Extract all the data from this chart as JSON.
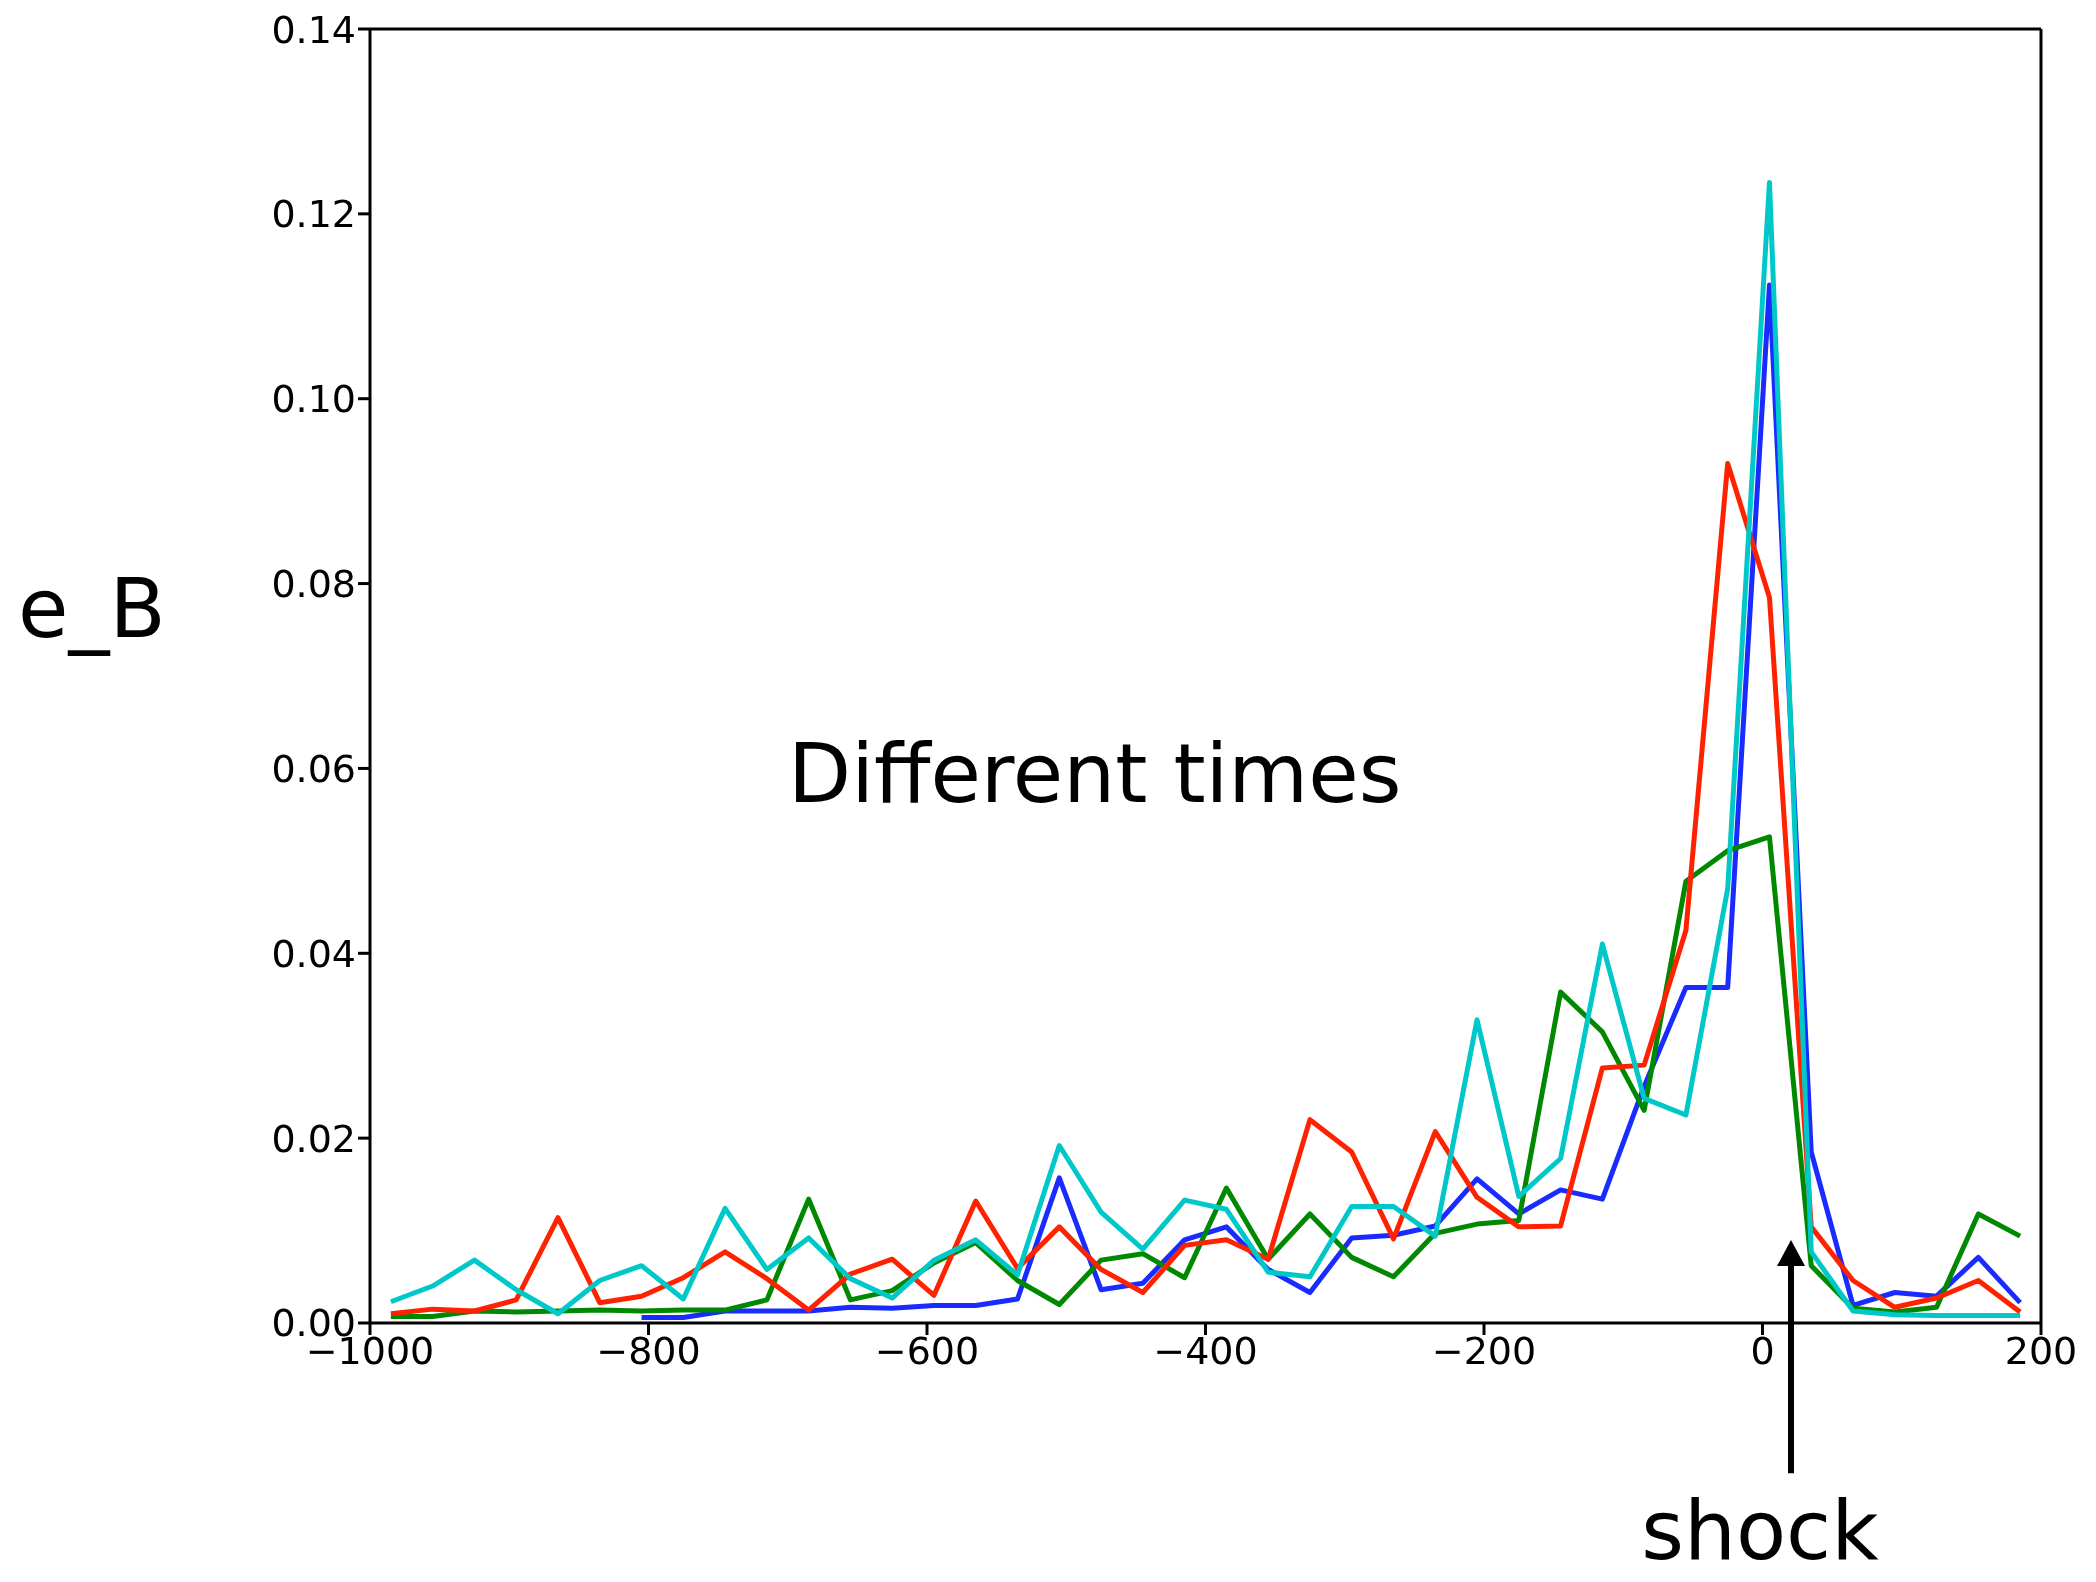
{
  "chart_data": {
    "type": "line",
    "ylabel": "e_B",
    "annotations": [
      "Different times",
      "shock"
    ],
    "x": [
      -985,
      -955,
      -925,
      -895,
      -865,
      -835,
      -805,
      -775,
      -745,
      -715,
      -685,
      -655,
      -625,
      -595,
      -565,
      -535,
      -505,
      -475,
      -445,
      -415,
      -385,
      -355,
      -325,
      -295,
      -265,
      -235,
      -205,
      -175,
      -145,
      -115,
      -85,
      -55,
      -25,
      5,
      35,
      65,
      95,
      125,
      155,
      185
    ],
    "series": [
      {
        "color": "#1a2bff",
        "x": [
          -805,
          -775,
          -745,
          -715,
          -685,
          -655,
          -625,
          -595,
          -565,
          -535,
          -505,
          -475,
          -445,
          -415,
          -385,
          -355,
          -325,
          -295,
          -265,
          -235,
          -205,
          -175,
          -145,
          -115,
          -85,
          -55,
          -25,
          5,
          35,
          65,
          95,
          125,
          155,
          185
        ],
        "values": [
          0.0006,
          0.0006,
          0.0013,
          0.0013,
          0.0013,
          0.0017,
          0.0016,
          0.0019,
          0.0019,
          0.0026,
          0.0157,
          0.0036,
          0.0043,
          0.009,
          0.0104,
          0.0058,
          0.0033,
          0.0092,
          0.0095,
          0.0105,
          0.0156,
          0.0118,
          0.0144,
          0.0134,
          0.0256,
          0.0363,
          0.0363,
          0.1123,
          0.0185,
          0.0019,
          0.0033,
          0.0029,
          0.0071,
          0.0022
        ]
      },
      {
        "color": "#008800",
        "values": [
          0.0007,
          0.0007,
          0.0013,
          0.0012,
          0.0013,
          0.0014,
          0.0013,
          0.0014,
          0.0014,
          0.0025,
          0.0134,
          0.0025,
          0.0035,
          0.0065,
          0.0087,
          0.0046,
          0.002,
          0.0068,
          0.0075,
          0.0049,
          0.0146,
          0.0069,
          0.0118,
          0.0071,
          0.005,
          0.0097,
          0.0107,
          0.0111,
          0.0358,
          0.0315,
          0.023,
          0.0478,
          0.0511,
          0.0526,
          0.0062,
          0.0016,
          0.0012,
          0.0017,
          0.0118,
          0.0094
        ]
      },
      {
        "color": "#ff2200",
        "values": [
          0.001,
          0.0015,
          0.0013,
          0.0025,
          0.0114,
          0.0022,
          0.0029,
          0.0049,
          0.0077,
          0.0048,
          0.0014,
          0.0053,
          0.0069,
          0.003,
          0.0132,
          0.0059,
          0.0104,
          0.0058,
          0.0033,
          0.0084,
          0.009,
          0.0069,
          0.022,
          0.0185,
          0.0091,
          0.0207,
          0.0136,
          0.0104,
          0.0105,
          0.0276,
          0.0279,
          0.0425,
          0.093,
          0.0785,
          0.0104,
          0.0046,
          0.0017,
          0.0027,
          0.0046,
          0.0012
        ]
      },
      {
        "color": "#00c8c8",
        "values": [
          0.0023,
          0.004,
          0.0068,
          0.0036,
          0.001,
          0.0046,
          0.0062,
          0.0026,
          0.0124,
          0.0058,
          0.0092,
          0.0048,
          0.0027,
          0.0068,
          0.009,
          0.0052,
          0.0192,
          0.012,
          0.008,
          0.0133,
          0.0123,
          0.0055,
          0.005,
          0.0126,
          0.0126,
          0.0094,
          0.0328,
          0.0137,
          0.0178,
          0.041,
          0.0243,
          0.0225,
          0.047,
          0.1234,
          0.0077,
          0.0013,
          0.0009,
          0.0008,
          0.0008,
          0.0008
        ]
      }
    ],
    "xlim": [
      -1000,
      200
    ],
    "xticks": [
      {
        "value": -1000,
        "label": "−1000"
      },
      {
        "value": -800,
        "label": "−800"
      },
      {
        "value": -600,
        "label": "−600"
      },
      {
        "value": -400,
        "label": "−400"
      },
      {
        "value": -200,
        "label": "−200"
      },
      0,
      200
    ],
    "ylim": [
      0,
      0.14
    ],
    "yticks": [
      {
        "value": 0,
        "label": "0.00"
      },
      {
        "value": 0.02,
        "label": "0.02"
      },
      {
        "value": 0.04,
        "label": "0.04"
      },
      {
        "value": 0.06,
        "label": "0.06"
      },
      {
        "value": 0.08,
        "label": "0.08"
      },
      {
        "value": 0.1,
        "label": "0.10"
      },
      {
        "value": 0.12,
        "label": "0.12"
      },
      {
        "value": 0.14,
        "label": "0.14"
      }
    ],
    "grid": false,
    "legend": false,
    "marker": "none",
    "line_style": "solid"
  }
}
